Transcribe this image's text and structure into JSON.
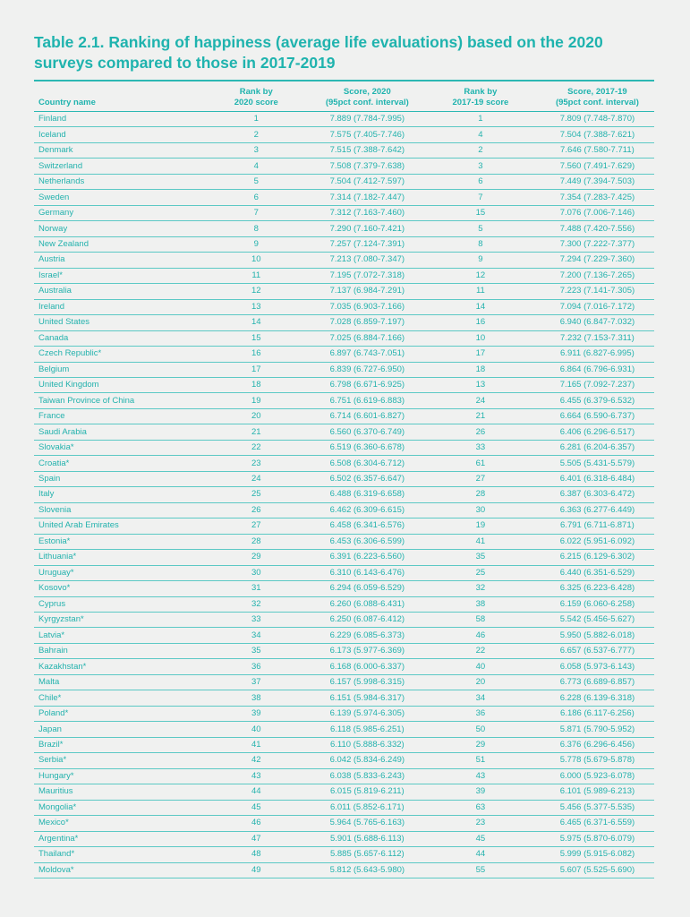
{
  "title": "Table 2.1. Ranking of happiness (average life evaluations) based on the 2020 surveys compared to those in 2017-2019",
  "headers": {
    "country": "Country name",
    "rank2020_l1": "Rank by",
    "rank2020_l2": "2020 score",
    "score2020_l1": "Score, 2020",
    "score2020_l2": "(95pct conf. interval)",
    "rank1719_l1": "Rank by",
    "rank1719_l2": "2017-19 score",
    "score1719_l1": "Score, 2017-19",
    "score1719_l2": "(95pct conf. interval)"
  },
  "colors": {
    "accent": "#1fb3ae",
    "background": "#f0f1f0"
  },
  "rows": [
    [
      "Finland",
      "1",
      "7.889 (7.784-7.995)",
      "1",
      "7.809 (7.748-7.870)"
    ],
    [
      "Iceland",
      "2",
      "7.575 (7.405-7.746)",
      "4",
      "7.504 (7.388-7.621)"
    ],
    [
      "Denmark",
      "3",
      "7.515 (7.388-7.642)",
      "2",
      "7.646 (7.580-7.711)"
    ],
    [
      "Switzerland",
      "4",
      "7.508 (7.379-7.638)",
      "3",
      "7.560 (7.491-7.629)"
    ],
    [
      "Netherlands",
      "5",
      "7.504 (7.412-7.597)",
      "6",
      "7.449 (7.394-7.503)"
    ],
    [
      "Sweden",
      "6",
      "7.314 (7.182-7.447)",
      "7",
      "7.354 (7.283-7.425)"
    ],
    [
      "Germany",
      "7",
      "7.312 (7.163-7.460)",
      "15",
      "7.076 (7.006-7.146)"
    ],
    [
      "Norway",
      "8",
      "7.290 (7.160-7.421)",
      "5",
      "7.488 (7.420-7.556)"
    ],
    [
      "New Zealand",
      "9",
      "7.257 (7.124-7.391)",
      "8",
      "7.300 (7.222-7.377)"
    ],
    [
      "Austria",
      "10",
      "7.213 (7.080-7.347)",
      "9",
      "7.294 (7.229-7.360)"
    ],
    [
      "Israel*",
      "11",
      "7.195 (7.072-7.318)",
      "12",
      "7.200 (7.136-7.265)"
    ],
    [
      "Australia",
      "12",
      "7.137 (6.984-7.291)",
      "11",
      "7.223 (7.141-7.305)"
    ],
    [
      "Ireland",
      "13",
      "7.035 (6.903-7.166)",
      "14",
      "7.094 (7.016-7.172)"
    ],
    [
      "United States",
      "14",
      "7.028 (6.859-7.197)",
      "16",
      "6.940 (6.847-7.032)"
    ],
    [
      "Canada",
      "15",
      "7.025 (6.884-7.166)",
      "10",
      "7.232 (7.153-7.311)"
    ],
    [
      "Czech Republic*",
      "16",
      "6.897 (6.743-7.051)",
      "17",
      "6.911 (6.827-6.995)"
    ],
    [
      "Belgium",
      "17",
      "6.839 (6.727-6.950)",
      "18",
      "6.864 (6.796-6.931)"
    ],
    [
      "United Kingdom",
      "18",
      "6.798 (6.671-6.925)",
      "13",
      "7.165 (7.092-7.237)"
    ],
    [
      "Taiwan Province of China",
      "19",
      "6.751 (6.619-6.883)",
      "24",
      "6.455 (6.379-6.532)"
    ],
    [
      "France",
      "20",
      "6.714 (6.601-6.827)",
      "21",
      "6.664 (6.590-6.737)"
    ],
    [
      "Saudi Arabia",
      "21",
      "6.560 (6.370-6.749)",
      "26",
      "6.406 (6.296-6.517)"
    ],
    [
      "Slovakia*",
      "22",
      "6.519 (6.360-6.678)",
      "33",
      "6.281 (6.204-6.357)"
    ],
    [
      "Croatia*",
      "23",
      "6.508 (6.304-6.712)",
      "61",
      "5.505 (5.431-5.579)"
    ],
    [
      "Spain",
      "24",
      "6.502 (6.357-6.647)",
      "27",
      "6.401 (6.318-6.484)"
    ],
    [
      "Italy",
      "25",
      "6.488 (6.319-6.658)",
      "28",
      "6.387 (6.303-6.472)"
    ],
    [
      "Slovenia",
      "26",
      "6.462 (6.309-6.615)",
      "30",
      "6.363 (6.277-6.449)"
    ],
    [
      "United Arab Emirates",
      "27",
      "6.458 (6.341-6.576)",
      "19",
      "6.791 (6.711-6.871)"
    ],
    [
      "Estonia*",
      "28",
      "6.453 (6.306-6.599)",
      "41",
      "6.022 (5.951-6.092)"
    ],
    [
      "Lithuania*",
      "29",
      "6.391 (6.223-6.560)",
      "35",
      "6.215 (6.129-6.302)"
    ],
    [
      "Uruguay*",
      "30",
      "6.310 (6.143-6.476)",
      "25",
      "6.440 (6.351-6.529)"
    ],
    [
      "Kosovo*",
      "31",
      "6.294 (6.059-6.529)",
      "32",
      "6.325 (6.223-6.428)"
    ],
    [
      "Cyprus",
      "32",
      "6.260 (6.088-6.431)",
      "38",
      "6.159 (6.060-6.258)"
    ],
    [
      "Kyrgyzstan*",
      "33",
      "6.250 (6.087-6.412)",
      "58",
      "5.542 (5.456-5.627)"
    ],
    [
      "Latvia*",
      "34",
      "6.229 (6.085-6.373)",
      "46",
      "5.950 (5.882-6.018)"
    ],
    [
      "Bahrain",
      "35",
      "6.173 (5.977-6.369)",
      "22",
      "6.657 (6.537-6.777)"
    ],
    [
      "Kazakhstan*",
      "36",
      "6.168 (6.000-6.337)",
      "40",
      "6.058 (5.973-6.143)"
    ],
    [
      "Malta",
      "37",
      "6.157 (5.998-6.315)",
      "20",
      "6.773 (6.689-6.857)"
    ],
    [
      "Chile*",
      "38",
      "6.151 (5.984-6.317)",
      "34",
      "6.228 (6.139-6.318)"
    ],
    [
      "Poland*",
      "39",
      "6.139 (5.974-6.305)",
      "36",
      "6.186 (6.117-6.256)"
    ],
    [
      "Japan",
      "40",
      "6.118 (5.985-6.251)",
      "50",
      "5.871 (5.790-5.952)"
    ],
    [
      "Brazil*",
      "41",
      "6.110 (5.888-6.332)",
      "29",
      "6.376 (6.296-6.456)"
    ],
    [
      "Serbia*",
      "42",
      "6.042 (5.834-6.249)",
      "51",
      "5.778 (5.679-5.878)"
    ],
    [
      "Hungary*",
      "43",
      "6.038 (5.833-6.243)",
      "43",
      "6.000 (5.923-6.078)"
    ],
    [
      "Mauritius",
      "44",
      "6.015 (5.819-6.211)",
      "39",
      "6.101 (5.989-6.213)"
    ],
    [
      "Mongolia*",
      "45",
      "6.011 (5.852-6.171)",
      "63",
      "5.456 (5.377-5.535)"
    ],
    [
      "Mexico*",
      "46",
      "5.964 (5.765-6.163)",
      "23",
      "6.465 (6.371-6.559)"
    ],
    [
      "Argentina*",
      "47",
      "5.901 (5.688-6.113)",
      "45",
      "5.975 (5.870-6.079)"
    ],
    [
      "Thailand*",
      "48",
      "5.885 (5.657-6.112)",
      "44",
      "5.999 (5.915-6.082)"
    ],
    [
      "Moldova*",
      "49",
      "5.812 (5.643-5.980)",
      "55",
      "5.607 (5.525-5.690)"
    ]
  ]
}
